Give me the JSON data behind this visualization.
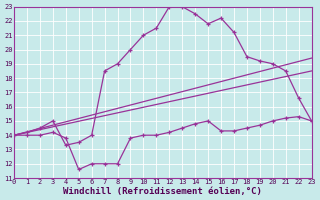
{
  "bg_color": "#c8eaea",
  "grid_color": "#aadddd",
  "line_color": "#993399",
  "x_min": 0,
  "x_max": 23,
  "y_min": 11,
  "y_max": 23,
  "xlabel": "Windchill (Refroidissement éolien,°C)",
  "xlabel_fontsize": 6.5,
  "curve_arch_x": [
    0,
    1,
    2,
    3,
    4,
    5,
    6,
    7,
    8,
    9,
    10,
    11,
    12,
    13,
    14,
    15,
    16,
    17,
    18,
    19,
    20,
    21,
    22,
    23
  ],
  "curve_arch_y": [
    14.0,
    14.2,
    14.5,
    15.0,
    13.3,
    13.5,
    14.0,
    18.5,
    19.0,
    20.0,
    21.0,
    21.5,
    23.0,
    23.0,
    22.5,
    21.8,
    22.2,
    21.2,
    19.5,
    19.2,
    19.0,
    18.5,
    16.6,
    15.0
  ],
  "curve_dip_x": [
    0,
    1,
    2,
    3,
    4,
    5,
    6,
    7,
    8,
    9,
    10,
    11,
    12,
    13,
    14,
    15,
    16,
    17,
    18,
    19,
    20,
    21,
    22,
    23
  ],
  "curve_dip_y": [
    14.0,
    14.0,
    14.0,
    14.2,
    13.8,
    11.6,
    12.0,
    12.0,
    12.0,
    13.8,
    14.0,
    14.0,
    14.2,
    14.5,
    14.8,
    15.0,
    14.3,
    14.3,
    14.5,
    14.7,
    15.0,
    15.2,
    15.3,
    15.0
  ],
  "curve_line_x": [
    0,
    23
  ],
  "curve_line_y": [
    14.0,
    19.4
  ]
}
